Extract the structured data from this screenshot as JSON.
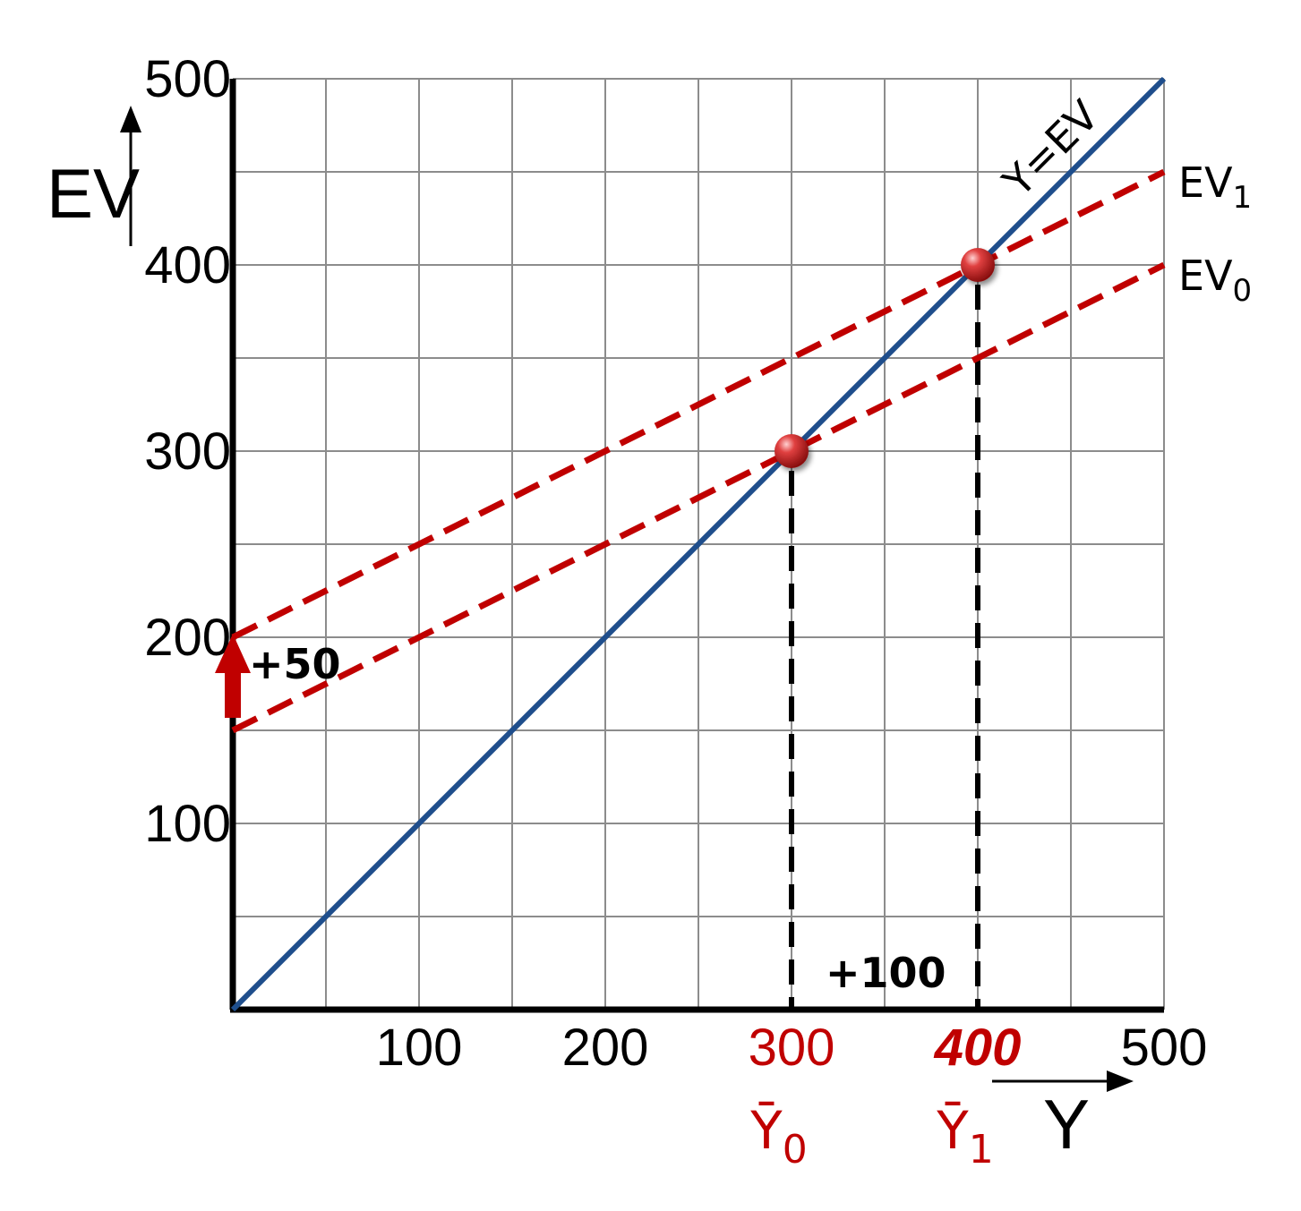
{
  "chart_data": {
    "type": "line",
    "xlabel": "Y",
    "ylabel": "EV",
    "xlim": [
      0,
      500
    ],
    "ylim": [
      0,
      500
    ],
    "x_ticks": [
      "100",
      "200",
      "300",
      "400",
      "500"
    ],
    "y_ticks": [
      "100",
      "200",
      "300",
      "400",
      "500"
    ],
    "grid": true,
    "series": [
      {
        "name": "Y=EV",
        "style": "solid",
        "color": "#1f4e8c",
        "x": [
          0,
          500
        ],
        "y": [
          0,
          500
        ]
      },
      {
        "name": "EV",
        "sub": "1",
        "style": "dashed",
        "color": "#c00000",
        "x": [
          0,
          500
        ],
        "y": [
          200,
          450
        ]
      },
      {
        "name": "EV",
        "sub": "0",
        "style": "dashed",
        "color": "#c00000",
        "x": [
          0,
          500
        ],
        "y": [
          150,
          400
        ]
      }
    ],
    "equilibria": [
      {
        "x": 300,
        "y": 300,
        "label": "Ȳ",
        "sub": "0"
      },
      {
        "x": 400,
        "y": 400,
        "label": "Ȳ",
        "sub": "1"
      }
    ],
    "annotations": {
      "shift": "+50",
      "output_change": "+100"
    },
    "colors": {
      "axis": "#000000",
      "grid": "#8c8c8c",
      "line45": "#1f4e8c",
      "ev": "#c00000",
      "dashed_drop": "#000000"
    }
  }
}
